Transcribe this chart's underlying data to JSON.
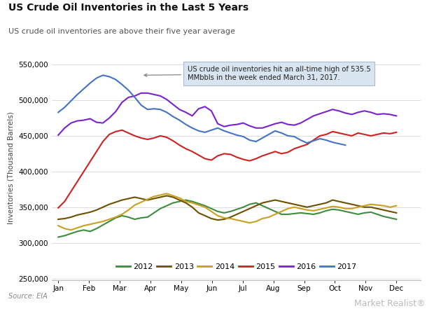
{
  "title": "US Crude Oil Inventories in the Last 5 Years",
  "subtitle": "US crude oil inventories are above their five year average",
  "ylabel": "Inventories (Thousand Barrels)",
  "source": "Source: EIA",
  "watermark": "Market Realist",
  "annotation": "US crude oil inventories hit an all-time high of 535.5\nMMbbls in the week ended March 31, 2017.",
  "ylim": [
    248000,
    562000
  ],
  "yticks": [
    250000,
    300000,
    350000,
    400000,
    450000,
    500000,
    550000
  ],
  "months": [
    "Jan",
    "Feb",
    "Mar",
    "Apr",
    "May",
    "Jun",
    "Jul",
    "Aug",
    "Sep",
    "Oct",
    "Nov",
    "Dec"
  ],
  "bg_color": "#ffffff",
  "grid_color": "#dddddd",
  "series": {
    "2012": {
      "color": "#3d8c3d",
      "data": [
        308000,
        310000,
        313000,
        316000,
        318000,
        316000,
        320000,
        325000,
        330000,
        335000,
        338000,
        336000,
        333000,
        335000,
        336000,
        342000,
        348000,
        352000,
        356000,
        358000,
        360000,
        358000,
        355000,
        352000,
        348000,
        344000,
        342000,
        344000,
        347000,
        350000,
        354000,
        356000,
        352000,
        348000,
        344000,
        340000,
        340000,
        341000,
        342000,
        341000,
        340000,
        342000,
        345000,
        347000,
        346000,
        344000,
        342000,
        340000,
        342000,
        343000,
        340000,
        337000,
        335000,
        333000
      ]
    },
    "2013": {
      "color": "#6b5000",
      "data": [
        333000,
        334000,
        336000,
        339000,
        341000,
        343000,
        346000,
        350000,
        354000,
        357000,
        360000,
        362000,
        364000,
        362000,
        360000,
        362000,
        364000,
        366000,
        364000,
        360000,
        356000,
        350000,
        342000,
        338000,
        334000,
        332000,
        333000,
        336000,
        340000,
        344000,
        348000,
        352000,
        356000,
        358000,
        360000,
        358000,
        356000,
        354000,
        352000,
        350000,
        352000,
        354000,
        356000,
        360000,
        358000,
        356000,
        354000,
        352000,
        350000,
        350000,
        348000,
        346000,
        344000,
        342000
      ]
    },
    "2014": {
      "color": "#c8a020",
      "data": [
        324000,
        320000,
        318000,
        321000,
        324000,
        326000,
        328000,
        330000,
        333000,
        336000,
        340000,
        346000,
        353000,
        357000,
        361000,
        365000,
        367000,
        369000,
        366000,
        363000,
        358000,
        356000,
        353000,
        350000,
        344000,
        338000,
        335000,
        334000,
        332000,
        330000,
        328000,
        330000,
        334000,
        336000,
        340000,
        344000,
        348000,
        350000,
        348000,
        346000,
        345000,
        347000,
        349000,
        351000,
        350000,
        348000,
        348000,
        350000,
        352000,
        354000,
        353000,
        352000,
        350000,
        352000
      ]
    },
    "2015": {
      "color": "#cc2222",
      "data": [
        349000,
        358000,
        372000,
        386000,
        400000,
        414000,
        428000,
        442000,
        452000,
        456000,
        458000,
        454000,
        450000,
        447000,
        445000,
        447000,
        450000,
        448000,
        443000,
        437000,
        432000,
        428000,
        423000,
        418000,
        416000,
        422000,
        425000,
        424000,
        420000,
        417000,
        415000,
        418000,
        422000,
        425000,
        428000,
        425000,
        427000,
        432000,
        435000,
        438000,
        444000,
        450000,
        452000,
        456000,
        454000,
        452000,
        450000,
        454000,
        452000,
        450000,
        452000,
        454000,
        453000,
        455000
      ]
    },
    "2016": {
      "color": "#7b22cc",
      "data": [
        451000,
        461000,
        468000,
        471000,
        472000,
        474000,
        469000,
        468000,
        475000,
        484000,
        497000,
        504000,
        506000,
        510000,
        510000,
        508000,
        506000,
        501000,
        494000,
        487000,
        483000,
        478000,
        488000,
        491000,
        485000,
        467000,
        463000,
        465000,
        466000,
        468000,
        464000,
        461000,
        461000,
        464000,
        467000,
        469000,
        466000,
        465000,
        468000,
        473000,
        478000,
        481000,
        484000,
        487000,
        485000,
        482000,
        480000,
        483000,
        485000,
        483000,
        480000,
        481000,
        480000,
        478000
      ]
    },
    "2017": {
      "color": "#4472c4",
      "data": [
        483000,
        490000,
        499000,
        508000,
        516000,
        524000,
        531000,
        535000,
        533000,
        529000,
        522000,
        514000,
        504000,
        493000,
        487000,
        488000,
        487000,
        483000,
        477000,
        472000,
        466000,
        461000,
        457000,
        455000,
        458000,
        461000,
        457000,
        454000,
        451000,
        449000,
        444000,
        442000,
        447000,
        452000,
        457000,
        454000,
        450000,
        449000,
        444000,
        440000,
        443000,
        446000,
        444000,
        441000,
        439000,
        437000,
        null,
        null,
        null,
        null,
        null,
        null,
        null,
        null
      ]
    }
  },
  "legend_order": [
    "2012",
    "2013",
    "2014",
    "2015",
    "2016",
    "2017"
  ]
}
